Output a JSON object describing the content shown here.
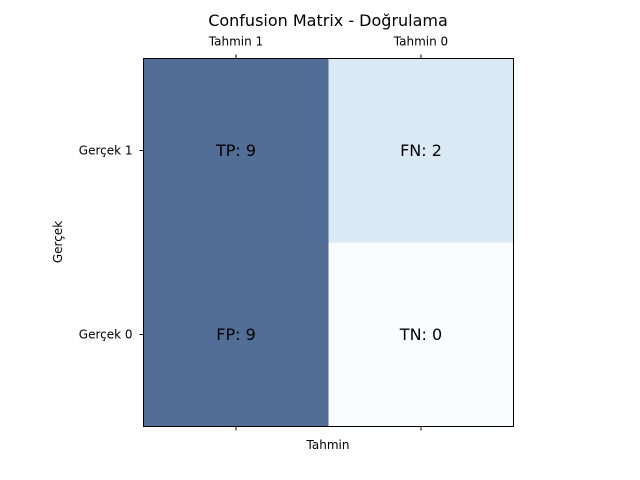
{
  "chart_data": {
    "type": "heatmap",
    "title": "Confusion Matrix - Doğrulama",
    "xlabel": "Tahmin",
    "ylabel": "Gerçek",
    "x_categories": [
      "Tahmin 1",
      "Tahmin 0"
    ],
    "y_categories": [
      "Gerçek 1",
      "Gerçek 0"
    ],
    "values": [
      [
        9,
        2
      ],
      [
        9,
        0
      ]
    ],
    "cell_labels": [
      [
        "TP: 9",
        "FN: 2"
      ],
      [
        "FP: 9",
        "TN: 0"
      ]
    ],
    "colormap": "Blues",
    "value_range": [
      0,
      9
    ],
    "x_tick_position": "top",
    "grid": false,
    "colors": {
      "high": "#08306b",
      "low": "#f7fbff",
      "alpha": 0.7
    }
  }
}
